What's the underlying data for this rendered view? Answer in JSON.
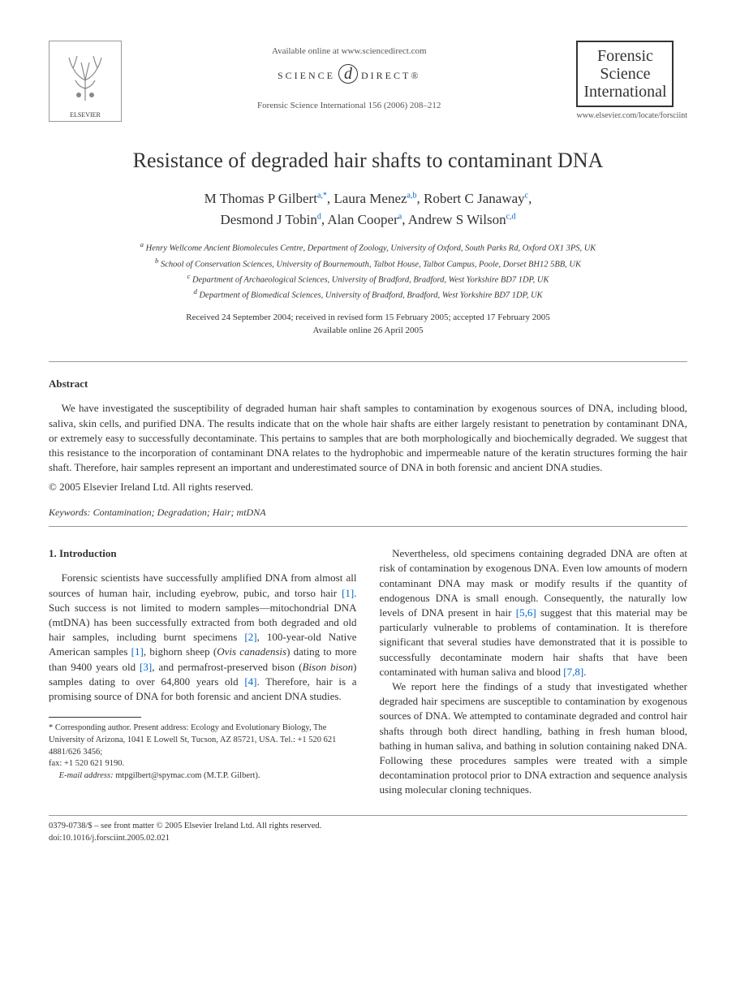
{
  "header": {
    "publisher_name": "ELSEVIER",
    "available_text": "Available online at www.sciencedirect.com",
    "science_direct_left": "SCIENCE",
    "science_direct_right": "DIRECT®",
    "citation": "Forensic Science International 156 (2006) 208–212",
    "journal_name_line1": "Forensic",
    "journal_name_line2": "Science",
    "journal_name_line3": "International",
    "journal_url": "www.elsevier.com/locate/forsciint"
  },
  "article": {
    "title": "Resistance of degraded hair shafts to contaminant DNA",
    "authors_html": "M Thomas P Gilbert",
    "authors": [
      {
        "name": "M Thomas P Gilbert",
        "sup": "a,*"
      },
      {
        "name": "Laura Menez",
        "sup": "a,b"
      },
      {
        "name": "Robert C Janaway",
        "sup": "c"
      },
      {
        "name": "Desmond J Tobin",
        "sup": "d"
      },
      {
        "name": "Alan Cooper",
        "sup": "a"
      },
      {
        "name": "Andrew S Wilson",
        "sup": "c,d"
      }
    ],
    "affiliations": [
      {
        "sup": "a",
        "text": "Henry Wellcome Ancient Biomolecules Centre, Department of Zoology, University of Oxford, South Parks Rd, Oxford OX1 3PS, UK"
      },
      {
        "sup": "b",
        "text": "School of Conservation Sciences, University of Bournemouth, Talbot House, Talbot Campus, Poole, Dorset BH12 5BB, UK"
      },
      {
        "sup": "c",
        "text": "Department of Archaeological Sciences, University of Bradford, Bradford, West Yorkshire BD7 1DP, UK"
      },
      {
        "sup": "d",
        "text": "Department of Biomedical Sciences, University of Bradford, Bradford, West Yorkshire BD7 1DP, UK"
      }
    ],
    "dates_line1": "Received 24 September 2004; received in revised form 15 February 2005; accepted 17 February 2005",
    "dates_line2": "Available online 26 April 2005"
  },
  "abstract": {
    "heading": "Abstract",
    "text": "We have investigated the susceptibility of degraded human hair shaft samples to contamination by exogenous sources of DNA, including blood, saliva, skin cells, and purified DNA. The results indicate that on the whole hair shafts are either largely resistant to penetration by contaminant DNA, or extremely easy to successfully decontaminate. This pertains to samples that are both morphologically and biochemically degraded. We suggest that this resistance to the incorporation of contaminant DNA relates to the hydrophobic and impermeable nature of the keratin structures forming the hair shaft. Therefore, hair samples represent an important and underestimated source of DNA in both forensic and ancient DNA studies.",
    "copyright": "© 2005 Elsevier Ireland Ltd. All rights reserved.",
    "keywords_label": "Keywords:",
    "keywords": "Contamination; Degradation; Hair; mtDNA"
  },
  "body": {
    "section_number": "1.",
    "section_title": "Introduction",
    "col1_p1_pre": "Forensic scientists have successfully amplified DNA from almost all sources of human hair, including eyebrow, pubic, and torso hair ",
    "ref1": "[1]",
    "col1_p1_mid1": ". Such success is not limited to modern samples—mitochondrial DNA (mtDNA) has been successfully extracted from both degraded and old hair samples, including burnt specimens ",
    "ref2": "[2]",
    "col1_p1_mid2": ", 100-year-old Native American samples ",
    "ref1b": "[1]",
    "col1_p1_mid3": ", bighorn sheep (",
    "species1": "Ovis canadensis",
    "col1_p1_mid4": ") dating to more than 9400 years old ",
    "ref3": "[3]",
    "col1_p1_mid5": ", and permafrost-preserved bison (",
    "species2": "Bison bison",
    "col1_p1_mid6": ") samples dating to over 64,800 years old ",
    "ref4": "[4]",
    "col1_p1_end": ". Therefore, hair is a promising source of DNA for both forensic and ancient DNA studies.",
    "col2_p1_pre": "Nevertheless, old specimens containing degraded DNA are often at risk of contamination by exogenous DNA. Even low amounts of modern contaminant DNA may mask or modify results if the quantity of endogenous DNA is small enough. Consequently, the naturally low levels of DNA present in hair ",
    "ref56": "[5,6]",
    "col2_p1_mid": " suggest that this material may be particularly vulnerable to problems of contamination. It is therefore significant that several studies have demonstrated that it is possible to successfully decontaminate modern hair shafts that have been contaminated with human saliva and blood ",
    "ref78": "[7,8]",
    "col2_p1_end": ".",
    "col2_p2": "We report here the findings of a study that investigated whether degraded hair specimens are susceptible to contamination by exogenous sources of DNA. We attempted to contaminate degraded and control hair shafts through both direct handling, bathing in fresh human blood, bathing in human saliva, and bathing in solution containing naked DNA. Following these procedures samples were treated with a simple decontamination protocol prior to DNA extraction and sequence analysis using molecular cloning techniques."
  },
  "footnote": {
    "corr_label": "* Corresponding author.",
    "corr_text": " Present address: Ecology and Evolutionary Biology, The University of Arizona, 1041 E Lowell St, Tucson, AZ 85721, USA. Tel.: +1 520 621 4881/626 3456;",
    "fax": "fax: +1 520 621 9190.",
    "email_label": "E-mail address:",
    "email": " mtpgilbert@spymac.com (M.T.P. Gilbert)."
  },
  "footer": {
    "line1": "0379-0738/$ – see front matter © 2005 Elsevier Ireland Ltd. All rights reserved.",
    "line2": "doi:10.1016/j.forsciint.2005.02.021"
  }
}
